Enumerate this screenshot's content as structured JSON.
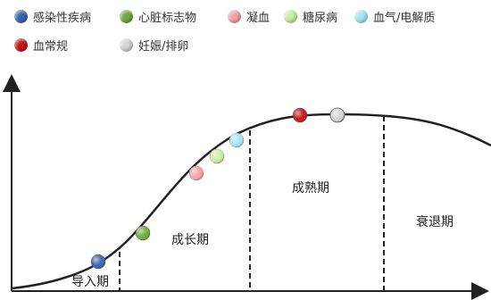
{
  "legend": [
    {
      "label": "感染性疾病",
      "color": "#3a63ad"
    },
    {
      "label": "心脏标志物",
      "color": "#6fab3b"
    },
    {
      "label": "凝血",
      "color": "#f4a3a6"
    },
    {
      "label": "糖尿病",
      "color": "#c9efa1"
    },
    {
      "label": "血气/电解质",
      "color": "#a8e4f3"
    },
    {
      "label": "血常规",
      "color": "#c4161c"
    },
    {
      "label": "妊娠/排卵",
      "color": "#d4d4d4"
    }
  ],
  "stages": [
    {
      "label": "导入期"
    },
    {
      "label": "成长期"
    },
    {
      "label": "成熟期"
    },
    {
      "label": "衰退期"
    }
  ]
}
